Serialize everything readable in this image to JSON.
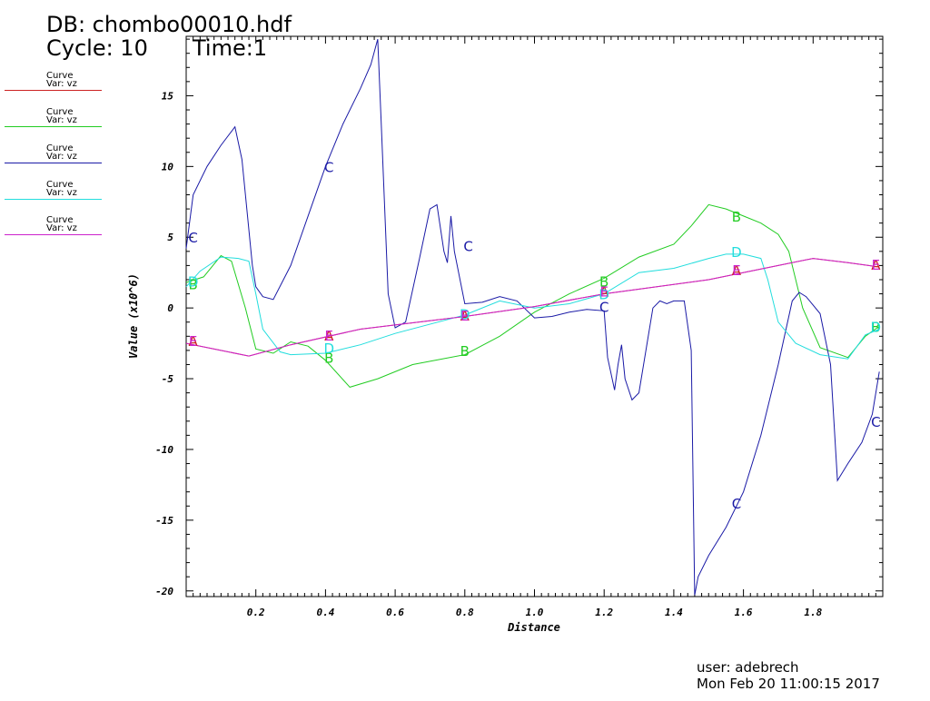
{
  "header": {
    "db": "DB: chombo00010.hdf",
    "cycle": "Cycle: 10",
    "time": "Time:1"
  },
  "legend": [
    {
      "line1": "Curve",
      "line2": "Var: vz",
      "color": "#cc2222"
    },
    {
      "line1": "Curve",
      "line2": "Var: vz",
      "color": "#22cc22"
    },
    {
      "line1": "Curve",
      "line2": "Var: vz",
      "color": "#1a1aa6"
    },
    {
      "line1": "Curve",
      "line2": "Var: vz",
      "color": "#22dddd"
    },
    {
      "line1": "Curve",
      "line2": "Var: vz",
      "color": "#cc22cc"
    }
  ],
  "footer": {
    "user": "user: adebrech",
    "date": "Mon Feb 20 11:00:15 2017"
  },
  "chart_data": {
    "type": "line",
    "xlabel": "Distance",
    "ylabel": "Value (x10^6)",
    "xlim": [
      0.0,
      2.0
    ],
    "ylim": [
      -20.4,
      19.2
    ],
    "xticks": [
      "0.2",
      "0.4",
      "0.6",
      "0.8",
      "1.0",
      "1.2",
      "1.4",
      "1.6",
      "1.8"
    ],
    "yticks": [
      "15",
      "10",
      "5",
      "0",
      "-5",
      "-10",
      "-15",
      "-20"
    ],
    "series": [
      {
        "label": "A",
        "color": "#cc2222",
        "x": [
          0.0,
          0.1,
          0.18,
          0.3,
          0.5,
          0.8,
          1.0,
          1.2,
          1.5,
          1.7,
          1.8,
          1.9,
          1.99
        ],
        "y": [
          -2.5,
          -3.0,
          -3.4,
          -2.6,
          -1.5,
          -0.6,
          0.1,
          1.0,
          2.0,
          3.0,
          3.5,
          3.2,
          2.9
        ],
        "markers": [
          [
            0.02,
            -2.3
          ],
          [
            0.41,
            -1.9
          ],
          [
            0.8,
            -0.5
          ],
          [
            1.2,
            1.2
          ],
          [
            1.58,
            2.7
          ],
          [
            1.98,
            3.1
          ]
        ]
      },
      {
        "label": "B",
        "color": "#22cc22",
        "x": [
          0.0,
          0.05,
          0.1,
          0.13,
          0.17,
          0.2,
          0.25,
          0.3,
          0.35,
          0.4,
          0.47,
          0.55,
          0.65,
          0.8,
          0.9,
          1.0,
          1.1,
          1.2,
          1.3,
          1.4,
          1.45,
          1.5,
          1.55,
          1.6,
          1.65,
          1.7,
          1.73,
          1.77,
          1.82,
          1.9,
          1.95,
          1.99
        ],
        "y": [
          1.8,
          2.2,
          3.7,
          3.3,
          0.0,
          -2.9,
          -3.2,
          -2.4,
          -2.7,
          -3.7,
          -5.6,
          -5.0,
          -4.0,
          -3.3,
          -2.0,
          -0.3,
          1.0,
          2.1,
          3.6,
          4.5,
          5.8,
          7.3,
          7.0,
          6.5,
          6.0,
          5.2,
          4.0,
          0.0,
          -2.8,
          -3.5,
          -2.0,
          -1.3
        ],
        "markers": [
          [
            0.02,
            1.7
          ],
          [
            0.41,
            -3.5
          ],
          [
            0.8,
            -3.0
          ],
          [
            1.2,
            1.9
          ],
          [
            1.58,
            6.5
          ],
          [
            1.98,
            -1.3
          ]
        ]
      },
      {
        "label": "C",
        "color": "#1a1aa6",
        "x": [
          0.0,
          0.02,
          0.06,
          0.1,
          0.14,
          0.16,
          0.19,
          0.2,
          0.22,
          0.25,
          0.3,
          0.35,
          0.4,
          0.45,
          0.5,
          0.53,
          0.55,
          0.56,
          0.58,
          0.6,
          0.63,
          0.67,
          0.7,
          0.72,
          0.74,
          0.75,
          0.76,
          0.77,
          0.8,
          0.85,
          0.9,
          0.95,
          1.0,
          1.05,
          1.1,
          1.15,
          1.2,
          1.21,
          1.23,
          1.24,
          1.25,
          1.26,
          1.28,
          1.3,
          1.32,
          1.34,
          1.36,
          1.38,
          1.4,
          1.43,
          1.45,
          1.46,
          1.47,
          1.5,
          1.55,
          1.6,
          1.65,
          1.7,
          1.74,
          1.76,
          1.78,
          1.82,
          1.85,
          1.87,
          1.9,
          1.94,
          1.97,
          1.99
        ],
        "y": [
          4.2,
          8.0,
          10.0,
          11.5,
          12.8,
          10.5,
          3.0,
          1.5,
          0.8,
          0.6,
          3.0,
          6.5,
          10.0,
          13.0,
          15.5,
          17.2,
          19.0,
          13.0,
          1.0,
          -1.4,
          -1.0,
          3.5,
          7.0,
          7.3,
          4.0,
          3.2,
          6.5,
          4.0,
          0.3,
          0.4,
          0.8,
          0.5,
          -0.7,
          -0.6,
          -0.3,
          -0.1,
          -0.2,
          -3.5,
          -5.8,
          -4.0,
          -2.6,
          -5.0,
          -6.5,
          -6.0,
          -3.0,
          0.0,
          0.5,
          0.3,
          0.5,
          0.5,
          -3.0,
          -20.3,
          -19.0,
          -17.5,
          -15.5,
          -13.0,
          -9.0,
          -4.0,
          0.5,
          1.1,
          0.8,
          -0.4,
          -4.0,
          -12.2,
          -11.0,
          -9.5,
          -7.5,
          -4.5
        ],
        "markers": [
          [
            0.02,
            5.0
          ],
          [
            0.41,
            10.0
          ],
          [
            0.81,
            4.4
          ],
          [
            1.2,
            0.1
          ],
          [
            1.58,
            -13.8
          ],
          [
            1.98,
            -8.0
          ]
        ]
      },
      {
        "label": "D",
        "color": "#22dddd",
        "x": [
          0.0,
          0.04,
          0.1,
          0.15,
          0.18,
          0.2,
          0.22,
          0.27,
          0.3,
          0.4,
          0.5,
          0.6,
          0.8,
          0.9,
          1.0,
          1.1,
          1.2,
          1.3,
          1.4,
          1.5,
          1.55,
          1.6,
          1.65,
          1.67,
          1.7,
          1.75,
          1.82,
          1.9,
          1.95,
          1.99
        ],
        "y": [
          1.5,
          2.6,
          3.6,
          3.5,
          3.3,
          1.0,
          -1.5,
          -3.1,
          -3.3,
          -3.2,
          -2.6,
          -1.8,
          -0.5,
          0.5,
          0.0,
          0.3,
          1.0,
          2.5,
          2.8,
          3.5,
          3.8,
          3.8,
          3.5,
          2.0,
          -1.0,
          -2.5,
          -3.3,
          -3.6,
          -1.9,
          -1.5
        ],
        "markers": [
          [
            0.02,
            1.9
          ],
          [
            0.41,
            -2.8
          ],
          [
            0.8,
            -0.4
          ],
          [
            1.2,
            1.0
          ],
          [
            1.58,
            4.0
          ],
          [
            1.98,
            -1.3
          ]
        ]
      },
      {
        "label": "E",
        "color": "#cc22cc",
        "x": [
          0.0,
          0.1,
          0.18,
          0.3,
          0.5,
          0.8,
          1.0,
          1.2,
          1.5,
          1.7,
          1.8,
          1.9,
          1.99
        ],
        "y": [
          -2.5,
          -3.0,
          -3.4,
          -2.6,
          -1.5,
          -0.6,
          0.1,
          1.0,
          2.0,
          3.0,
          3.5,
          3.2,
          2.9
        ],
        "markers": [
          [
            0.02,
            -2.3
          ],
          [
            0.41,
            -1.9
          ],
          [
            0.8,
            -0.5
          ],
          [
            1.2,
            1.2
          ],
          [
            1.58,
            2.7
          ],
          [
            1.98,
            3.1
          ]
        ]
      }
    ]
  }
}
